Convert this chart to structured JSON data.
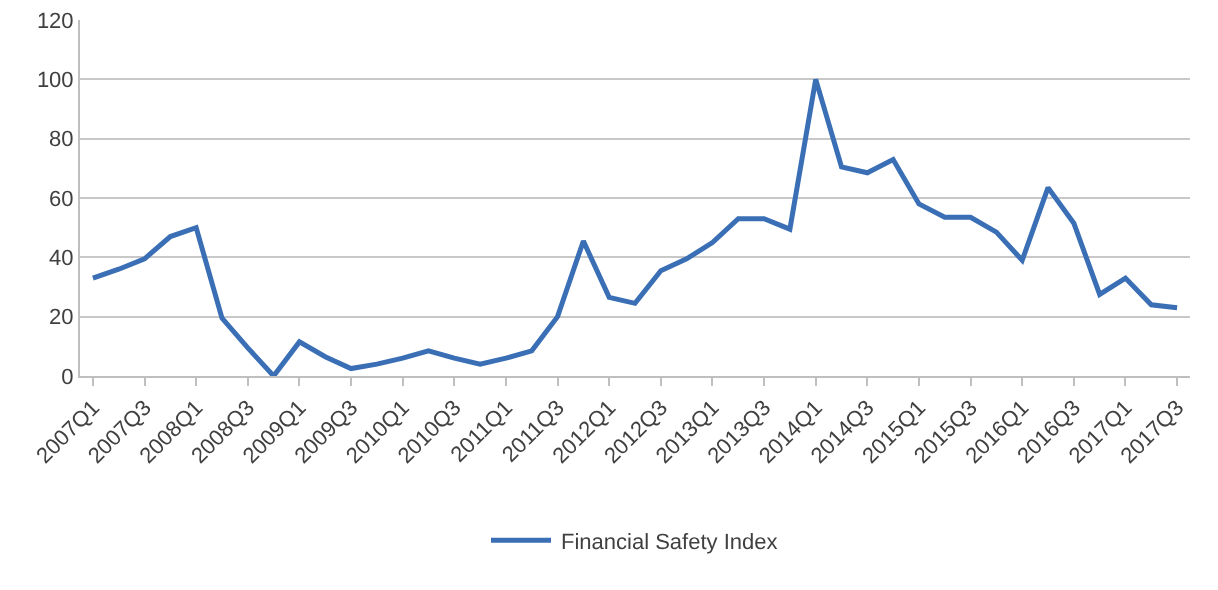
{
  "chart_data": {
    "type": "line",
    "categories": [
      "2007Q1",
      null,
      "2007Q3",
      null,
      "2008Q1",
      null,
      "2008Q3",
      null,
      "2009Q1",
      null,
      "2009Q3",
      null,
      "2010Q1",
      null,
      "2010Q3",
      null,
      "2011Q1",
      null,
      "2011Q3",
      null,
      "2012Q1",
      null,
      "2012Q3",
      null,
      "2013Q1",
      null,
      "2013Q3",
      null,
      "2014Q1",
      null,
      "2014Q3",
      null,
      "2015Q1",
      null,
      "2015Q3",
      null,
      "2016Q1",
      null,
      "2016Q3",
      null,
      "2017Q1",
      null,
      "2017Q3"
    ],
    "series": [
      {
        "name": "Financial Safety Index",
        "color": "#3a6fb5",
        "values": [
          33,
          36,
          39.5,
          47,
          50,
          19.5,
          9.5,
          0,
          11.5,
          6.5,
          2.5,
          4,
          6,
          8.5,
          6,
          4,
          6,
          8.5,
          20,
          45.5,
          26.5,
          24.5,
          35.5,
          39.5,
          45,
          53,
          53,
          49.5,
          100,
          70.5,
          68.5,
          73,
          58,
          53.5,
          53.5,
          48.5,
          39,
          63.5,
          51.5,
          27.5,
          33,
          24,
          23
        ]
      }
    ],
    "ylim": [
      0,
      120
    ],
    "yticks": [
      0,
      20,
      40,
      60,
      80,
      100,
      120
    ],
    "grid": "y",
    "legend": "bottom",
    "marker": "none",
    "line_style": "solid"
  }
}
